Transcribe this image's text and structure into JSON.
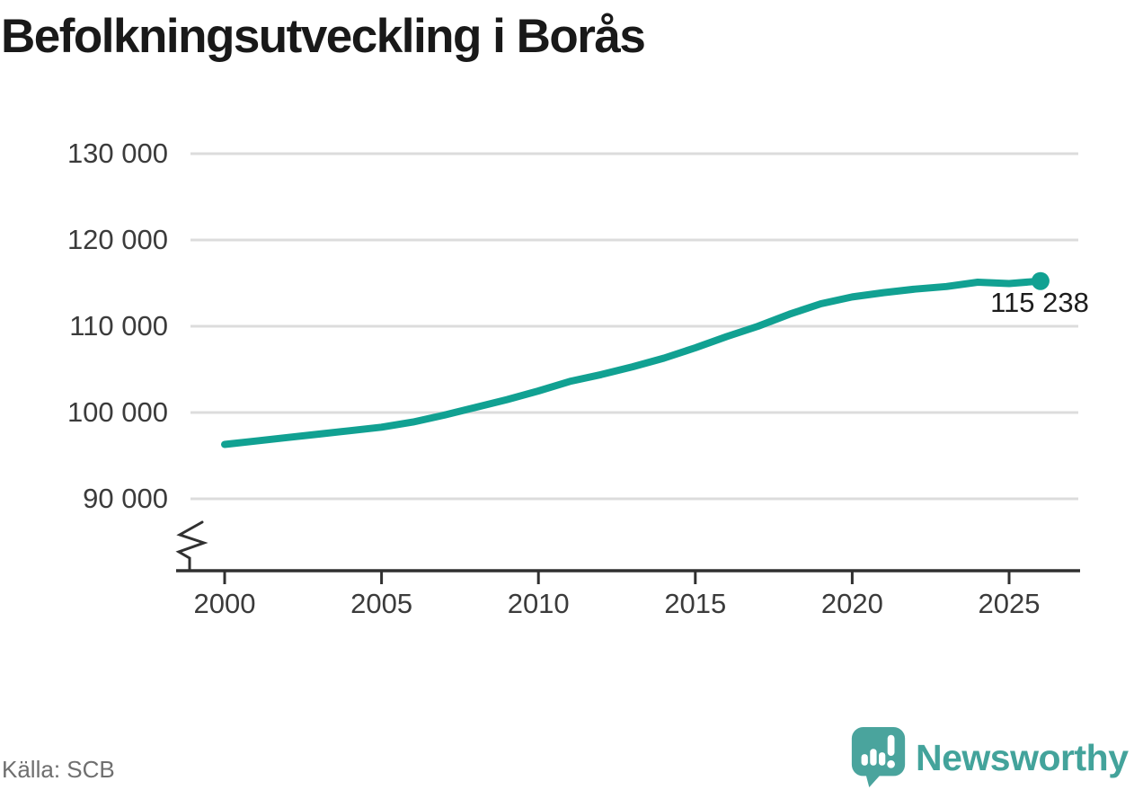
{
  "title": "Befolkningsutveckling i Borås",
  "source": "Källa: SCB",
  "branding": {
    "logo_text": "Newsworthy",
    "logo_icon": "newsworthy-speech-bubble-bar-chart-icon",
    "logo_color": "#43a39b"
  },
  "chart_data": {
    "type": "line",
    "title": "Befolkningsutveckling i Borås",
    "x": [
      2000,
      2001,
      2002,
      2003,
      2004,
      2005,
      2006,
      2007,
      2008,
      2009,
      2010,
      2011,
      2012,
      2013,
      2014,
      2015,
      2016,
      2017,
      2018,
      2019,
      2020,
      2021,
      2022,
      2023,
      2024,
      2025,
      2026
    ],
    "values": [
      96300,
      96700,
      97100,
      97500,
      97900,
      98300,
      98900,
      99700,
      100600,
      101500,
      102500,
      103600,
      104400,
      105300,
      106300,
      107500,
      108800,
      110000,
      111400,
      112600,
      113400,
      113900,
      114300,
      114600,
      115100,
      114950,
      115238
    ],
    "end_value": 115238,
    "end_label": "115 238",
    "line_color": "#11a192",
    "grid": "horizontal",
    "legend": "none",
    "y_axis": {
      "tick_values": [
        130000,
        120000,
        110000,
        100000,
        90000
      ],
      "tick_labels": [
        "130 000",
        "120 000",
        "110 000",
        "100 000",
        "90 000"
      ],
      "axis_break": true,
      "range": [
        90000,
        130000
      ]
    },
    "x_axis": {
      "tick_values": [
        2000,
        2005,
        2010,
        2015,
        2020,
        2025
      ],
      "tick_labels": [
        "2000",
        "2005",
        "2010",
        "2015",
        "2020",
        "2025"
      ],
      "range": [
        2000,
        2026
      ]
    }
  }
}
